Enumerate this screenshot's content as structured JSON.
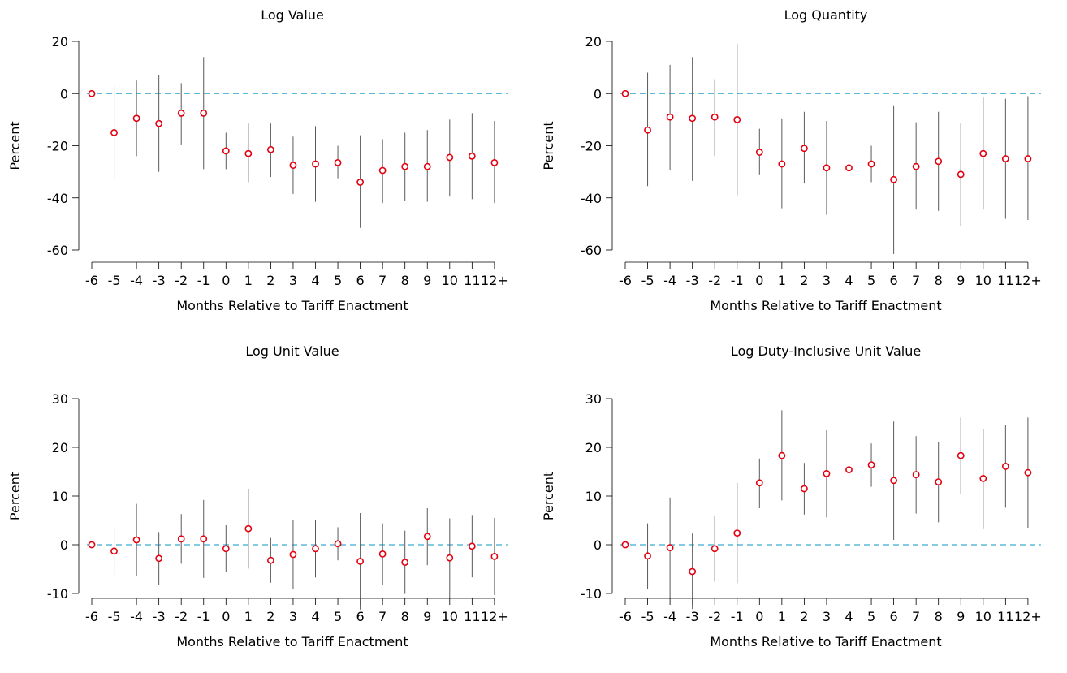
{
  "chart_data": [
    {
      "type": "scatter",
      "title": "Log Value",
      "xlabel": "Months Relative to Tariff Enactment",
      "ylabel": "Percent",
      "categories": [
        "-6",
        "-5",
        "-4",
        "-3",
        "-2",
        "-1",
        "0",
        "1",
        "2",
        "3",
        "4",
        "5",
        "6",
        "7",
        "8",
        "9",
        "10",
        "11",
        "12+"
      ],
      "ylim": [
        -65,
        20
      ],
      "yticks": [
        20,
        0,
        -20,
        -40,
        -60
      ],
      "ytick_labels": [
        "20",
        "0",
        "-20",
        "-40",
        "-60"
      ],
      "reference_line": 0,
      "series": [
        {
          "values": [
            0,
            -15,
            -9.5,
            -11.5,
            -7.5,
            -7.5,
            -22,
            -23,
            -21.5,
            -27.5,
            -27,
            -26.5,
            -34,
            -29.5,
            -28,
            -28,
            -24.5,
            -24,
            -26.5
          ],
          "ci_low": [
            0,
            -33,
            -24,
            -30,
            -19.5,
            -29,
            -29,
            -34,
            -32,
            -38.5,
            -41.5,
            -32.5,
            -51.5,
            -42,
            -41,
            -41.5,
            -39.5,
            -40.5,
            -42
          ],
          "ci_high": [
            0,
            3,
            5,
            7,
            4,
            14,
            -15,
            -11.5,
            -11.5,
            -16.5,
            -12.5,
            -20,
            -16,
            -17.5,
            -15,
            -14,
            -10,
            -7.5,
            -10.5
          ]
        }
      ]
    },
    {
      "type": "scatter",
      "title": "Log Quantity",
      "xlabel": "Months Relative to Tariff Enactment",
      "ylabel": "Percent",
      "categories": [
        "-6",
        "-5",
        "-4",
        "-3",
        "-2",
        "-1",
        "0",
        "1",
        "2",
        "3",
        "4",
        "5",
        "6",
        "7",
        "8",
        "9",
        "10",
        "11",
        "12+"
      ],
      "ylim": [
        -65,
        20
      ],
      "yticks": [
        20,
        0,
        -20,
        -40,
        -60
      ],
      "ytick_labels": [
        "20",
        "0",
        "-20",
        "-40",
        "-60"
      ],
      "reference_line": 0,
      "series": [
        {
          "values": [
            0,
            -14,
            -9,
            -9.5,
            -9,
            -10,
            -22.5,
            -27,
            -21,
            -28.5,
            -28.5,
            -27,
            -33,
            -28,
            -26,
            -31,
            -23,
            -25,
            -25
          ],
          "ci_low": [
            0,
            -35.5,
            -29.5,
            -33.5,
            -24,
            -39,
            -31,
            -44,
            -34.5,
            -46.5,
            -47.5,
            -34,
            -61.5,
            -44.5,
            -45,
            -51,
            -44.5,
            -48,
            -48.5
          ],
          "ci_high": [
            0,
            8,
            11,
            14,
            5.5,
            19,
            -13.5,
            -9.5,
            -7,
            -10.5,
            -9,
            -20,
            -4.5,
            -11,
            -7,
            -11.5,
            -1.5,
            -2,
            -1
          ]
        }
      ]
    },
    {
      "type": "scatter",
      "title": "Log Unit Value",
      "xlabel": "Months Relative to Tariff Enactment",
      "ylabel": "Percent",
      "categories": [
        "-6",
        "-5",
        "-4",
        "-3",
        "-2",
        "-1",
        "0",
        "1",
        "2",
        "3",
        "4",
        "5",
        "6",
        "7",
        "8",
        "9",
        "10",
        "11",
        "12+"
      ],
      "ylim": [
        -15,
        30
      ],
      "yticks": [
        30,
        20,
        10,
        0,
        -10
      ],
      "ytick_labels": [
        "30",
        "20",
        "10",
        "0",
        "-10"
      ],
      "reference_line": 0,
      "series": [
        {
          "values": [
            0,
            -1.3,
            1,
            -2.8,
            1.2,
            1.2,
            -0.8,
            3.3,
            -3.2,
            -2,
            -0.8,
            0.2,
            -3.4,
            -1.9,
            -3.6,
            1.7,
            -2.7,
            -0.3,
            -2.4
          ],
          "ci_low": [
            0,
            -6.2,
            -6.5,
            -8.3,
            -3.9,
            -6.8,
            -5.6,
            -4.9,
            -7.8,
            -9.1,
            -6.7,
            -3.2,
            -13.3,
            -8.2,
            -10.1,
            -4.2,
            -10.9,
            -6.7,
            -10.3
          ],
          "ci_high": [
            0,
            3.5,
            8.4,
            2.6,
            6.3,
            9.2,
            4,
            11.5,
            1.4,
            5.1,
            5.1,
            3.6,
            6.5,
            4.4,
            2.9,
            7.5,
            5.4,
            6.1,
            5.5
          ]
        }
      ]
    },
    {
      "type": "scatter",
      "title": "Log Duty-Inclusive Unit Value",
      "xlabel": "Months Relative to Tariff Enactment",
      "ylabel": "Percent",
      "categories": [
        "-6",
        "-5",
        "-4",
        "-3",
        "-2",
        "-1",
        "0",
        "1",
        "2",
        "3",
        "4",
        "5",
        "6",
        "7",
        "8",
        "9",
        "10",
        "11",
        "12+"
      ],
      "ylim": [
        -15,
        30
      ],
      "yticks": [
        30,
        20,
        10,
        0,
        -10
      ],
      "ytick_labels": [
        "30",
        "20",
        "10",
        "0",
        "-10"
      ],
      "reference_line": 0,
      "series": [
        {
          "values": [
            0,
            -2.3,
            -0.6,
            -5.5,
            -0.8,
            2.4,
            12.7,
            18.3,
            11.5,
            14.6,
            15.4,
            16.4,
            13.2,
            14.4,
            12.9,
            18.3,
            13.6,
            16.1,
            14.8
          ],
          "ci_low": [
            0,
            -9.1,
            -10.9,
            -13.2,
            -7.6,
            -7.9,
            7.5,
            9.1,
            6.2,
            5.6,
            7.7,
            11.9,
            1,
            6.4,
            4.6,
            10.5,
            3.2,
            7.6,
            3.5
          ],
          "ci_high": [
            0,
            4.4,
            9.7,
            2.3,
            6,
            12.7,
            17.7,
            27.6,
            16.8,
            23.5,
            23,
            20.8,
            25.3,
            22.3,
            21.1,
            26.1,
            23.8,
            24.5,
            26.1
          ]
        }
      ]
    }
  ],
  "colors": {
    "point": "#e3000f",
    "ci_line": "#595959",
    "reference_line": "#5bb8d9",
    "axis": "#000000"
  }
}
